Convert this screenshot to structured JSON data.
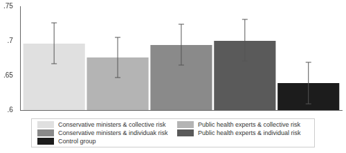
{
  "chart_data": {
    "type": "bar",
    "categories": [
      null
    ],
    "series": [
      {
        "name": "Conservative ministers & collective risk",
        "color": "#e0e0e0",
        "values": [
          0.696
        ],
        "ci_low": [
          0.667
        ],
        "ci_high": [
          0.726
        ]
      },
      {
        "name": "Public health experts & collective risk",
        "color": "#b4b4b4",
        "values": [
          0.676
        ],
        "ci_low": [
          0.647
        ],
        "ci_high": [
          0.705
        ]
      },
      {
        "name": "Conservative ministers & individuak risk",
        "color": "#8a8a8a",
        "values": [
          0.694
        ],
        "ci_low": [
          0.665
        ],
        "ci_high": [
          0.724
        ]
      },
      {
        "name": "Public health experts & individual risk",
        "color": "#5a5a5a",
        "values": [
          0.7
        ],
        "ci_low": [
          0.671
        ],
        "ci_high": [
          0.731
        ]
      },
      {
        "name": "Control group",
        "color": "#1c1c1c",
        "values": [
          0.639
        ],
        "ci_low": [
          0.609
        ],
        "ci_high": [
          0.669
        ]
      }
    ],
    "ylim": [
      0.6,
      0.75
    ],
    "yticks": [
      {
        "value": 0.6,
        "label": ".6"
      },
      {
        "value": 0.65,
        "label": ".65"
      },
      {
        "value": 0.7,
        "label": ".7"
      },
      {
        "value": 0.75,
        "label": ".75"
      }
    ],
    "grid": false,
    "legend": "bottom",
    "tick_labels": "y"
  }
}
